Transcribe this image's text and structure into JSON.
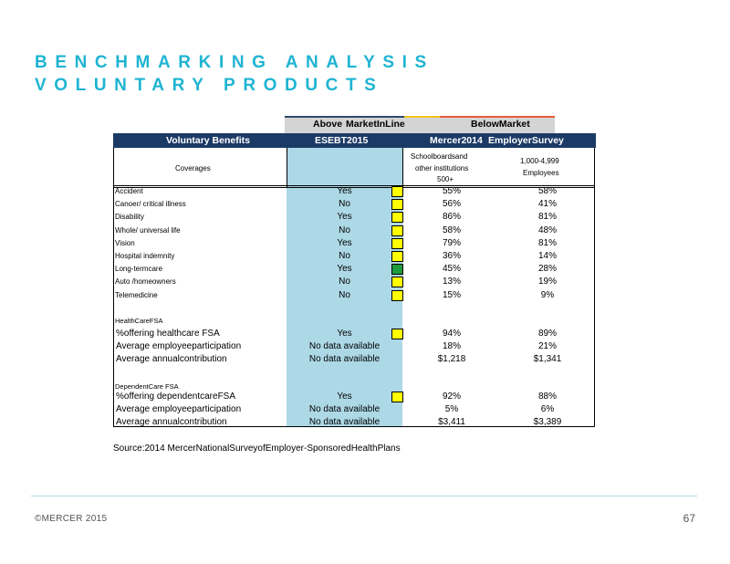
{
  "title": {
    "line1": "BENCHMARKING ANALYSIS",
    "line2": "VOLUNTARY PRODUCTS"
  },
  "legend": {
    "above": "Above",
    "in_line": "MarketInLine",
    "below": "BelowMarket"
  },
  "header": {
    "col1": "Voluntary Benefits",
    "col2": "ESEBT2015",
    "col3": "Mercer2014",
    "col4": "EmployerSurvey"
  },
  "subheader": {
    "coverages": "Coverages",
    "m14_line1": "Schoolboardsand",
    "m14_line2": "other    institutions",
    "m14_line3": "500+",
    "emp_line1": "1,000-4,999",
    "emp_line2": "Employees"
  },
  "indicator_colors": {
    "yellow": "#ffff00",
    "green": "#1e9b3c"
  },
  "rows": [
    {
      "label": "Accident",
      "ese": "Yes",
      "indicator": "yellow",
      "m14": "55%",
      "emp": "58%"
    },
    {
      "label": "Canoer/      critical        illness",
      "ese": "No",
      "indicator": "yellow",
      "m14": "56%",
      "emp": "41%"
    },
    {
      "label": "Disability",
      "ese": "Yes",
      "indicator": "yellow",
      "m14": "86%",
      "emp": "81%"
    },
    {
      "label": "Whole/      universal          life",
      "ese": "No",
      "indicator": "yellow",
      "m14": "58%",
      "emp": "48%"
    },
    {
      "label": "Vision",
      "ese": "Yes",
      "indicator": "yellow",
      "m14": "79%",
      "emp": "81%"
    },
    {
      "label": "Hospital       indemnity",
      "ese": "No",
      "indicator": "yellow",
      "m14": "36%",
      "emp": "14%"
    },
    {
      "label": "Long-termcare",
      "ese": "Yes",
      "indicator": "green",
      "m14": "45%",
      "emp": "28%"
    },
    {
      "label": "Auto      /homeowners",
      "ese": "No",
      "indicator": "yellow",
      "m14": "13%",
      "emp": "19%"
    },
    {
      "label": "Telemedicine",
      "ese": "No",
      "indicator": "yellow",
      "m14": "15%",
      "emp": "9%"
    }
  ],
  "hfsa": {
    "section": "HealthCareFSA",
    "rows": [
      {
        "label": "%offering healthcare FSA",
        "ese": "Yes",
        "indicator": "yellow",
        "m14": "94%",
        "emp": "89%"
      },
      {
        "label": "Average employeeparticipation",
        "ese": "No data available",
        "m14": "18%",
        "emp": "21%"
      },
      {
        "label": "Average annualcontribution",
        "ese": "No data available",
        "m14": "$1,218",
        "emp": "$1,341"
      }
    ]
  },
  "dfsa": {
    "section": "DependentCare          FSA",
    "rows": [
      {
        "label": "%offering dependentcareFSA",
        "ese": "Yes",
        "indicator": "yellow",
        "m14": "92%",
        "emp": "88%"
      },
      {
        "label": "Average employeeparticipation",
        "ese": "No data available",
        "m14": "5%",
        "emp": "6%"
      },
      {
        "label": "Average annualcontribution",
        "ese": "No data available",
        "m14": "$3,411",
        "emp": "$3,389"
      }
    ]
  },
  "source": "Source:2014 MercerNationalSurveyofEmployer-SponsoredHealthPlans",
  "footer": "©MERCER  2015",
  "page_number": "67"
}
